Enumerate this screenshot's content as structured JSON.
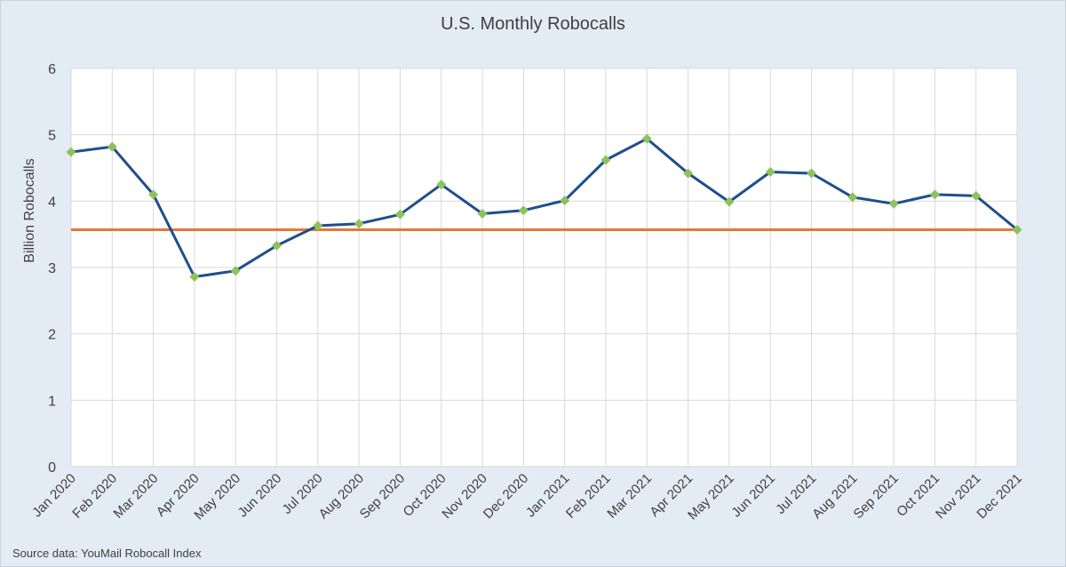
{
  "chart_data": {
    "type": "line",
    "title": "U.S. Monthly Robocalls",
    "ylabel": "Billion Robocalls",
    "xlabel": "",
    "ylim": [
      0,
      6
    ],
    "yticks": [
      0,
      1,
      2,
      3,
      4,
      5,
      6
    ],
    "grid": true,
    "categories": [
      "Jan 2020",
      "Feb 2020",
      "Mar 2020",
      "Apr 2020",
      "May 2020",
      "Jun 2020",
      "Jul 2020",
      "Aug 2020",
      "Sep 2020",
      "Oct 2020",
      "Nov 2020",
      "Dec 2020",
      "Jan 2021",
      "Feb 2021",
      "Mar 2021",
      "Apr 2021",
      "May 2021",
      "Jun 2021",
      "Jul 2021",
      "Aug 2021",
      "Sep 2021",
      "Oct 2021",
      "Nov 2021",
      "Dec 2021"
    ],
    "series": [
      {
        "values": [
          4.74,
          4.82,
          4.1,
          2.86,
          2.95,
          3.33,
          3.63,
          3.66,
          3.8,
          4.25,
          3.81,
          3.86,
          4.01,
          4.62,
          4.94,
          4.42,
          3.99,
          4.44,
          4.42,
          4.06,
          3.96,
          4.1,
          4.08,
          3.57
        ],
        "color": "#1f4e8c",
        "marker_color": "#8dc35a"
      }
    ],
    "reference_line": {
      "value": 3.57,
      "color": "#e07b39"
    },
    "source": "Source data: YouMail Robocall Index"
  }
}
